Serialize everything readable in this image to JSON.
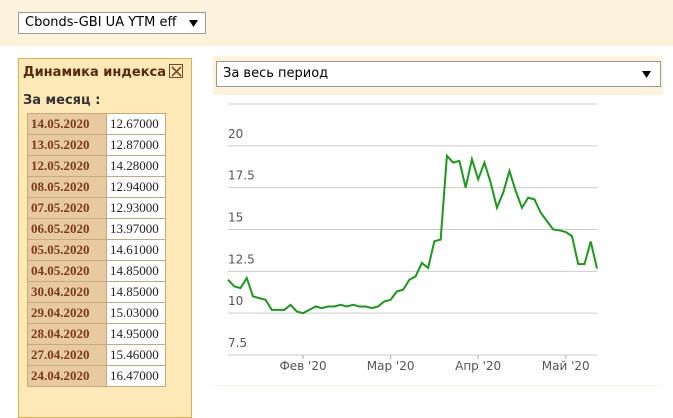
{
  "toolbar": {
    "index_select": "Cbonds-GBI UA YTM eff"
  },
  "panel": {
    "title": "Динамика индекса",
    "period": "За месяц :",
    "rows": [
      [
        "14.05.2020",
        "12.67000"
      ],
      [
        "13.05.2020",
        "12.87000"
      ],
      [
        "12.05.2020",
        "14.28000"
      ],
      [
        "08.05.2020",
        "12.94000"
      ],
      [
        "07.05.2020",
        "12.93000"
      ],
      [
        "06.05.2020",
        "13.97000"
      ],
      [
        "05.05.2020",
        "14.61000"
      ],
      [
        "04.05.2020",
        "14.85000"
      ],
      [
        "30.04.2020",
        "14.85000"
      ],
      [
        "29.04.2020",
        "15.03000"
      ],
      [
        "28.04.2020",
        "14.95000"
      ],
      [
        "27.04.2020",
        "15.46000"
      ],
      [
        "24.04.2020",
        "16.47000"
      ]
    ]
  },
  "period_select": "За весь период",
  "chart_data": {
    "type": "line",
    "color": "#1a9a1a",
    "values": [
      12.0,
      11.6,
      11.5,
      12.1,
      11.0,
      10.9,
      10.8,
      10.2,
      10.2,
      10.2,
      10.5,
      10.1,
      10.0,
      10.2,
      10.4,
      10.3,
      10.4,
      10.4,
      10.5,
      10.4,
      10.5,
      10.4,
      10.4,
      10.3,
      10.4,
      10.7,
      10.8,
      11.3,
      11.4,
      12.0,
      12.2,
      13.0,
      12.7,
      14.3,
      14.4,
      19.4,
      19.0,
      19.1,
      17.5,
      19.2,
      18.0,
      19.0,
      17.8,
      16.3,
      17.2,
      18.5,
      17.3,
      16.3,
      16.9,
      16.8,
      16.0,
      15.5,
      15.0,
      14.95,
      14.85,
      14.61,
      12.93,
      12.94,
      14.28,
      12.67
    ],
    "xlim": [
      0,
      59
    ],
    "xticks": [
      {
        "value": 12,
        "label": "Фев '20"
      },
      {
        "value": 26,
        "label": "Мар '20"
      },
      {
        "value": 40,
        "label": "Апр '20"
      },
      {
        "value": 54,
        "label": "Май '20"
      }
    ],
    "ylim": [
      7.5,
      22.5
    ],
    "yticks": [
      7.5,
      10,
      12.5,
      15,
      17.5,
      20
    ],
    "grid": true
  }
}
